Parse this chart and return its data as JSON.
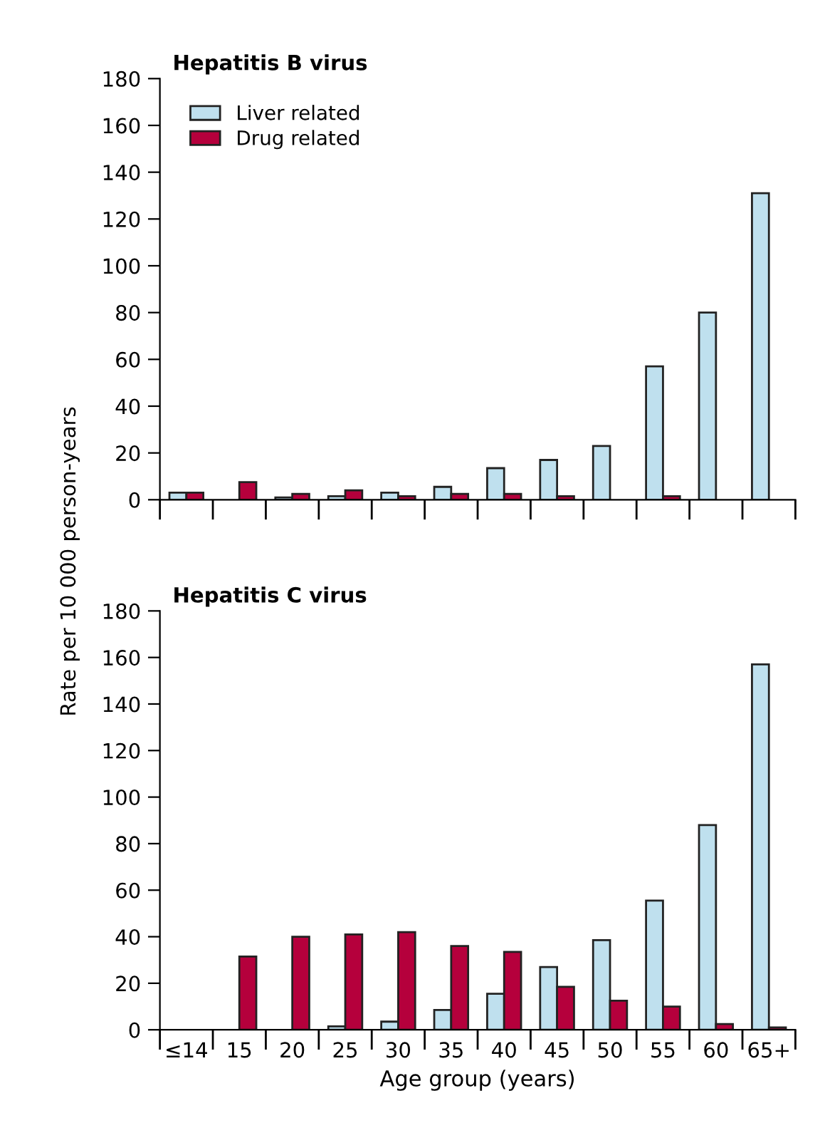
{
  "chart_data": [
    {
      "type": "bar",
      "title": "Hepatitis B virus",
      "ylabel": "Rate per 10 000 person-years",
      "categories": [
        null,
        null,
        null,
        null,
        null,
        null,
        null,
        null,
        null,
        null,
        null,
        null
      ],
      "series": [
        {
          "name": "Liver related",
          "color": "#bfe0ee",
          "values": [
            3,
            null,
            1,
            1.5,
            3,
            5.5,
            13.5,
            17,
            23,
            57,
            80,
            131
          ]
        },
        {
          "name": "Drug related",
          "color": "#b5003c",
          "values": [
            3,
            7.5,
            2.5,
            4,
            1.5,
            2.5,
            2.5,
            1.5,
            null,
            1.5,
            null,
            null
          ]
        }
      ],
      "ylim": [
        0,
        180
      ],
      "yticks": [
        0,
        20,
        40,
        60,
        80,
        100,
        120,
        140,
        160,
        180
      ],
      "tick_labels": "y",
      "legend": "top left",
      "grid": false
    },
    {
      "type": "bar",
      "title": "Hepatitis C virus",
      "xlabel": "Age group (years)",
      "categories": [
        "≤14",
        "15",
        "20",
        "25",
        "30",
        "35",
        "40",
        "45",
        "50",
        "55",
        "60",
        "65+"
      ],
      "series": [
        {
          "color": "#bfe0ee",
          "values": [
            null,
            null,
            null,
            1.5,
            3.5,
            8.5,
            15.5,
            27,
            38.5,
            55.5,
            88,
            157
          ]
        },
        {
          "color": "#b5003c",
          "values": [
            null,
            31.5,
            40,
            41,
            42,
            36,
            33.5,
            18.5,
            12.5,
            10,
            2.5,
            1
          ]
        }
      ],
      "ylim": [
        0,
        180
      ],
      "yticks": [
        0,
        20,
        40,
        60,
        80,
        100,
        120,
        140,
        160,
        180
      ],
      "grid": false
    }
  ]
}
